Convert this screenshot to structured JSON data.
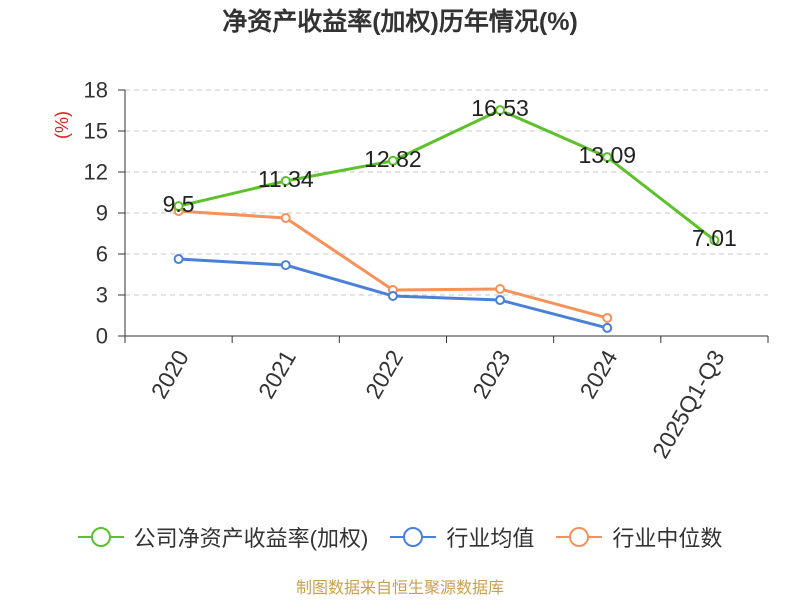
{
  "footer": "制图数据来自恒生聚源数据库",
  "colors": {
    "title": "#333333",
    "ylabel": "#d9261c",
    "footer": "#c8a04a",
    "grid": "#c8c8c8",
    "axis": "#333333"
  },
  "chart_data": {
    "type": "line",
    "title": "净资产收益率(加权)历年情况(%)",
    "xlabel": "",
    "ylabel": "(%)",
    "categories": [
      "2020",
      "2021",
      "2022",
      "2023",
      "2024",
      "2025Q1-Q3"
    ],
    "ylim": [
      0,
      18
    ],
    "yticks": [
      0,
      3,
      6,
      9,
      12,
      15,
      18
    ],
    "grid": true,
    "legend_position": "bottom",
    "series": [
      {
        "name": "公司净资产收益率(加权)",
        "values": [
          9.5,
          11.34,
          12.82,
          16.53,
          13.09,
          7.01
        ],
        "color": "#5cc12a",
        "show_labels": true
      },
      {
        "name": "行业均值",
        "values": [
          5.63,
          5.19,
          2.93,
          2.63,
          0.59,
          null
        ],
        "color": "#4a80d8",
        "show_labels": false
      },
      {
        "name": "行业中位数",
        "values": [
          9.14,
          8.63,
          3.37,
          3.44,
          1.32,
          null
        ],
        "color": "#f79059",
        "show_labels": false
      }
    ]
  }
}
